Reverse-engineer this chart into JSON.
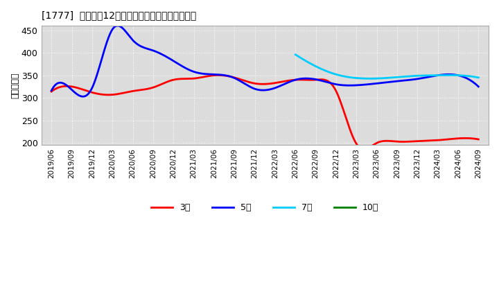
{
  "title": "[1777]  経常利益12か月移動合計の標準偏差の推移",
  "ylabel": "（百万円）",
  "ylim": [
    195,
    460
  ],
  "yticks": [
    200,
    250,
    300,
    350,
    400,
    450
  ],
  "background_color": "#ffffff",
  "plot_bg_color": "#dcdcdc",
  "grid_color": "#ffffff",
  "x_labels": [
    "2019/06",
    "2019/09",
    "2019/12",
    "2020/03",
    "2020/06",
    "2020/09",
    "2020/12",
    "2021/03",
    "2021/06",
    "2021/09",
    "2021/12",
    "2022/03",
    "2022/06",
    "2022/09",
    "2022/12",
    "2023/03",
    "2023/06",
    "2023/09",
    "2023/12",
    "2024/03",
    "2024/06",
    "2024/09"
  ],
  "series": {
    "3year": {
      "color": "#ff0000",
      "label": "3年",
      "data": [
        [
          0,
          314
        ],
        [
          1,
          325
        ],
        [
          2,
          312
        ],
        [
          3,
          307
        ],
        [
          4,
          315
        ],
        [
          5,
          323
        ],
        [
          6,
          340
        ],
        [
          7,
          343
        ],
        [
          8,
          350
        ],
        [
          9,
          345
        ],
        [
          10,
          332
        ],
        [
          11,
          333
        ],
        [
          12,
          340
        ],
        [
          13,
          340
        ],
        [
          14,
          315
        ],
        [
          15,
          198
        ],
        [
          16,
          200
        ],
        [
          17,
          203
        ],
        [
          18,
          204
        ],
        [
          19,
          206
        ],
        [
          20,
          210
        ],
        [
          21,
          208
        ]
      ]
    },
    "5year": {
      "color": "#0000ff",
      "label": "5年",
      "data": [
        [
          0,
          316
        ],
        [
          1,
          318
        ],
        [
          2,
          322
        ],
        [
          3,
          452
        ],
        [
          4,
          428
        ],
        [
          5,
          405
        ],
        [
          6,
          382
        ],
        [
          7,
          358
        ],
        [
          8,
          352
        ],
        [
          9,
          344
        ],
        [
          10,
          320
        ],
        [
          11,
          322
        ],
        [
          12,
          340
        ],
        [
          13,
          341
        ],
        [
          14,
          330
        ],
        [
          15,
          328
        ],
        [
          16,
          332
        ],
        [
          17,
          337
        ],
        [
          18,
          342
        ],
        [
          19,
          350
        ],
        [
          20,
          350
        ],
        [
          21,
          325
        ]
      ]
    },
    "7year": {
      "color": "#00ccff",
      "label": "7年",
      "data": [
        [
          12,
          396
        ],
        [
          13,
          370
        ],
        [
          14,
          352
        ],
        [
          15,
          344
        ],
        [
          16,
          343
        ],
        [
          17,
          346
        ],
        [
          18,
          349
        ],
        [
          19,
          350
        ],
        [
          20,
          350
        ],
        [
          21,
          345
        ]
      ]
    },
    "10year": {
      "color": "#008000",
      "label": "10年",
      "data": []
    }
  }
}
